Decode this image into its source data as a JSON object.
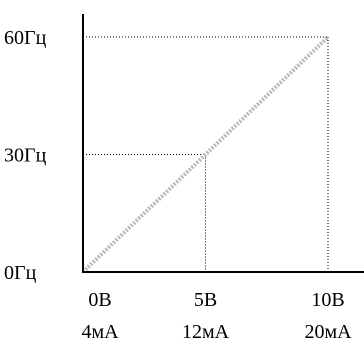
{
  "chart_data": {
    "type": "line",
    "title": "",
    "xlabel": "",
    "ylabel": "",
    "xlim": [
      0,
      10
    ],
    "ylim": [
      0,
      60
    ],
    "grid": false,
    "x_ticks": [
      {
        "value": 0,
        "label": "0В",
        "sublabel": "4мА"
      },
      {
        "value": 5,
        "label": "5В",
        "sublabel": "12мА"
      },
      {
        "value": 10,
        "label": "10В",
        "sublabel": "20мА"
      }
    ],
    "y_ticks": [
      {
        "value": 0,
        "label": "0Гц"
      },
      {
        "value": 30,
        "label": "30Гц"
      },
      {
        "value": 60,
        "label": "60Гц"
      }
    ],
    "series": [
      {
        "x": [
          0,
          10
        ],
        "y": [
          0,
          60
        ]
      }
    ],
    "reference_points": [
      {
        "x": 5,
        "y": 30
      },
      {
        "x": 10,
        "y": 60
      }
    ],
    "colors": {
      "axis": "#000000",
      "line": "#b8b8b8",
      "guide": "#000000"
    }
  }
}
